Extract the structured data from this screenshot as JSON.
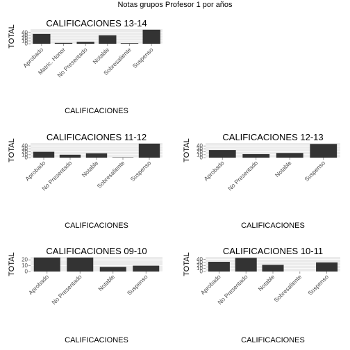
{
  "title": "Notas grupos Profesor 1 por años",
  "chart_data": [
    {
      "type": "bar",
      "title": "CALIFICACIONES 13-14",
      "xlabel": "CALIFICACIONES",
      "ylabel": "TOTAL",
      "categories": [
        "Aprobado",
        "Matric. Honor",
        "No Presentado",
        "Notable",
        "Sobresaliente",
        "Suspenso"
      ],
      "values": [
        35,
        3,
        7,
        30,
        2,
        50
      ],
      "yticks": [
        0,
        10,
        20,
        30,
        40
      ],
      "ylim": [
        0,
        52
      ],
      "grid": true,
      "bar_color": "#333333"
    },
    {
      "type": "bar",
      "title": "CALIFICACIONES 11-12",
      "xlabel": "CALIFICACIONES",
      "ylabel": "TOTAL",
      "categories": [
        "Aprobado",
        "No Presentado",
        "Notable",
        "Sobresaliente",
        "Suspenso"
      ],
      "values": [
        20,
        10,
        15,
        1,
        48
      ],
      "yticks": [
        0,
        10,
        20,
        30,
        40
      ],
      "ylim": [
        0,
        50
      ],
      "grid": true,
      "bar_color": "#333333"
    },
    {
      "type": "bar",
      "title": "CALIFICACIONES 12-13",
      "xlabel": "CALIFICACIONES",
      "ylabel": "TOTAL",
      "categories": [
        "Aprobado",
        "No Presentado",
        "Notable",
        "Suspenso"
      ],
      "values": [
        26,
        12,
        16,
        47
      ],
      "yticks": [
        0,
        10,
        20,
        30,
        40
      ],
      "ylim": [
        0,
        50
      ],
      "grid": true,
      "bar_color": "#333333"
    },
    {
      "type": "bar",
      "title": "CALIFICACIONES 09-10",
      "xlabel": "CALIFICACIONES",
      "ylabel": "TOTAL",
      "categories": [
        "Aprobado",
        "No Presentado",
        "Notable",
        "Suspenso"
      ],
      "values": [
        24,
        24,
        8,
        10
      ],
      "yticks": [
        0,
        10,
        20
      ],
      "ylim": [
        0,
        25
      ],
      "grid": true,
      "bar_color": "#333333"
    },
    {
      "type": "bar",
      "title": "CALIFICACIONES 10-11",
      "xlabel": "CALIFICACIONES",
      "ylabel": "TOTAL",
      "categories": [
        "Aprobado",
        "No Presentado",
        "Notable",
        "Sobresaliente",
        "Suspenso"
      ],
      "values": [
        32,
        45,
        22,
        0,
        30
      ],
      "yticks": [
        0,
        10,
        20,
        30,
        40
      ],
      "ylim": [
        0,
        48
      ],
      "grid": true,
      "bar_color": "#333333"
    }
  ]
}
